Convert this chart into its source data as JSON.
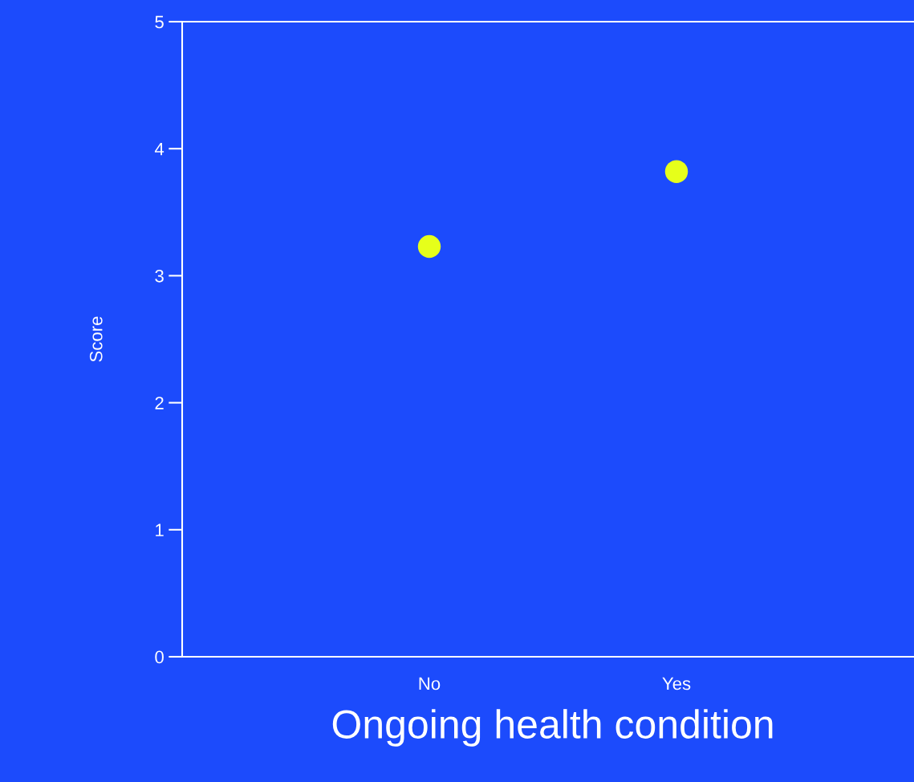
{
  "chart_data": {
    "type": "scatter",
    "xlabel": "Ongoing health condition",
    "ylabel": "Score",
    "categories": [
      "No",
      "Yes"
    ],
    "values": [
      3.23,
      3.82
    ],
    "color": "#e6ff1a",
    "ylim": [
      0,
      5
    ],
    "yticks": [
      0,
      1,
      2,
      3,
      4,
      5
    ],
    "grid": false,
    "marker": "circle"
  }
}
